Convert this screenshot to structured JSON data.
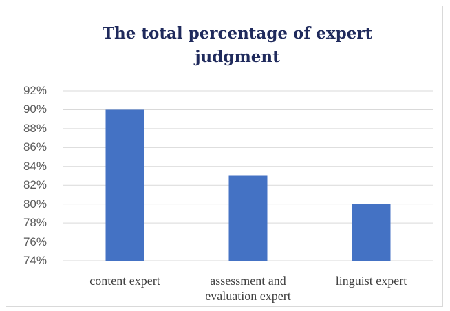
{
  "chart_data": {
    "type": "bar",
    "title": "The total percentage of expert judgment",
    "categories": [
      "content expert",
      "assessment and evaluation expert",
      "linguist expert"
    ],
    "values": [
      90,
      83,
      80
    ],
    "color": "#4472c4",
    "ylim": [
      74,
      92
    ],
    "yticks": [
      {
        "value": 74,
        "label": "74%"
      },
      {
        "value": 76,
        "label": "76%"
      },
      {
        "value": 78,
        "label": "78%"
      },
      {
        "value": 80,
        "label": "80%"
      },
      {
        "value": 82,
        "label": "82%"
      },
      {
        "value": 84,
        "label": "84%"
      },
      {
        "value": 86,
        "label": "86%"
      },
      {
        "value": 88,
        "label": "88%"
      },
      {
        "value": 90,
        "label": "90%"
      },
      {
        "value": 92,
        "label": "92%"
      }
    ],
    "grid": true
  }
}
